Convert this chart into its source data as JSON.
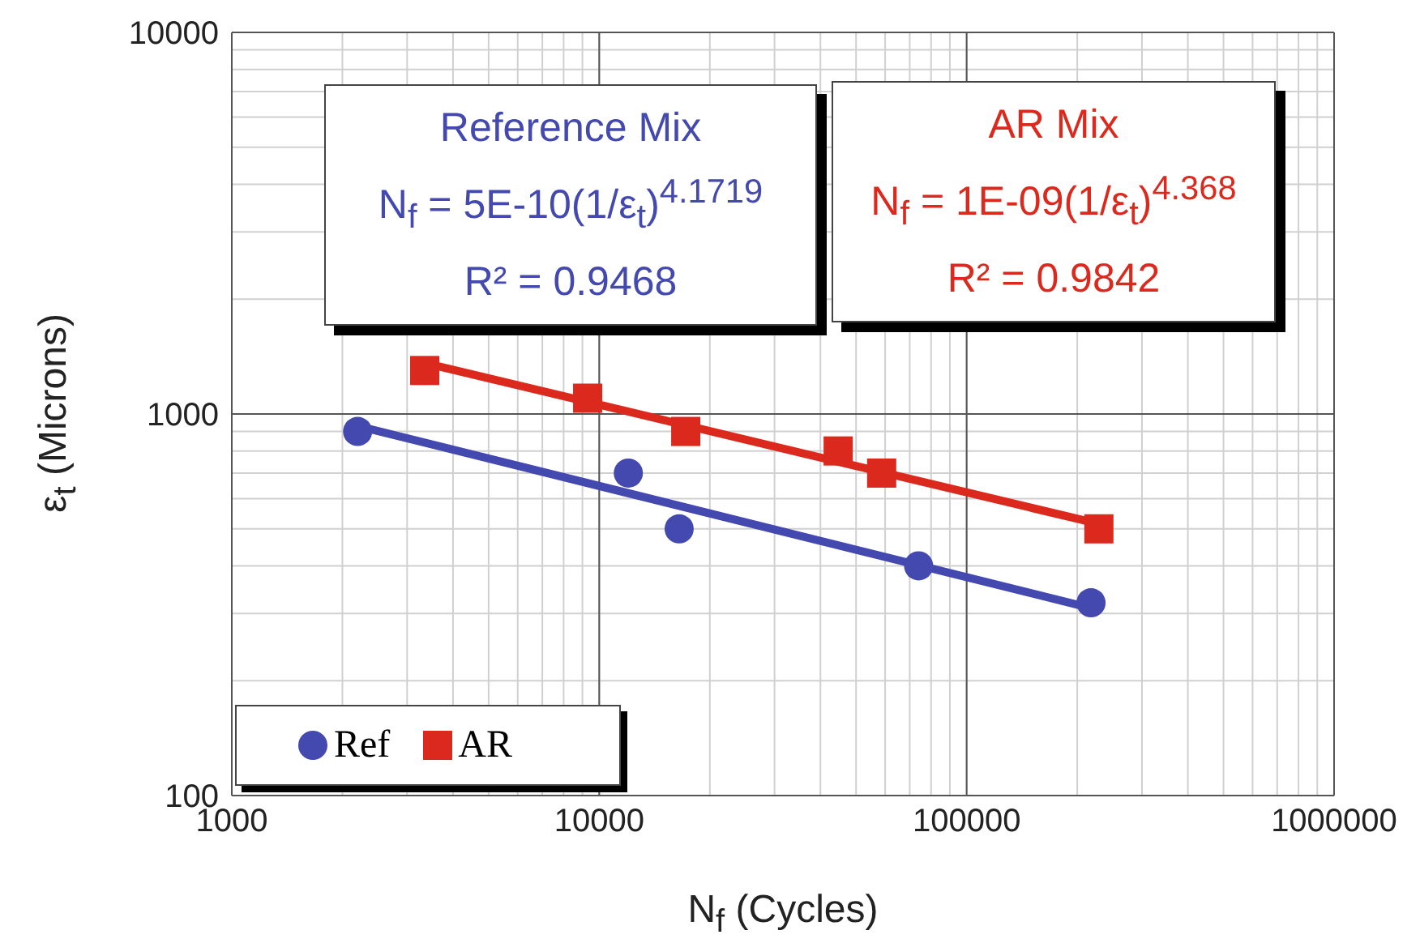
{
  "chart_data": {
    "type": "scatter",
    "xlabel": "N$_{f}$ (Cycles)",
    "ylabel": "ε$_{t}$ (Microns)",
    "log": "xy",
    "grid": true,
    "legend": "bottom left",
    "xlim": [
      1000,
      1000000
    ],
    "ylim": [
      100,
      10000
    ],
    "xticks": [
      1000,
      {
        "value": 2000,
        "label": null
      },
      {
        "value": 3000,
        "label": null
      },
      {
        "value": 4000,
        "label": null
      },
      {
        "value": 5000,
        "label": null
      },
      {
        "value": 6000,
        "label": null
      },
      {
        "value": 7000,
        "label": null
      },
      {
        "value": 8000,
        "label": null
      },
      {
        "value": 9000,
        "label": null
      },
      10000,
      {
        "value": 20000,
        "label": null
      },
      {
        "value": 30000,
        "label": null
      },
      {
        "value": 40000,
        "label": null
      },
      {
        "value": 50000,
        "label": null
      },
      {
        "value": 60000,
        "label": null
      },
      {
        "value": 70000,
        "label": null
      },
      {
        "value": 80000,
        "label": null
      },
      {
        "value": 90000,
        "label": null
      },
      100000,
      {
        "value": 200000,
        "label": null
      },
      {
        "value": 300000,
        "label": null
      },
      {
        "value": 400000,
        "label": null
      },
      {
        "value": 500000,
        "label": null
      },
      {
        "value": 600000,
        "label": null
      },
      {
        "value": 700000,
        "label": null
      },
      {
        "value": 800000,
        "label": null
      },
      {
        "value": 900000,
        "label": null
      },
      1000000
    ],
    "yticks": [
      100,
      {
        "value": 200,
        "label": null
      },
      {
        "value": 300,
        "label": null
      },
      {
        "value": 400,
        "label": null
      },
      {
        "value": 500,
        "label": null
      },
      {
        "value": 600,
        "label": null
      },
      {
        "value": 700,
        "label": null
      },
      {
        "value": 800,
        "label": null
      },
      {
        "value": 900,
        "label": null
      },
      1000,
      {
        "value": 2000,
        "label": null
      },
      {
        "value": 3000,
        "label": null
      },
      {
        "value": 4000,
        "label": null
      },
      {
        "value": 5000,
        "label": null
      },
      {
        "value": 6000,
        "label": null
      },
      {
        "value": 7000,
        "label": null
      },
      {
        "value": 8000,
        "label": null
      },
      {
        "value": 9000,
        "label": null
      },
      10000
    ],
    "series": [
      {
        "name": "Ref",
        "marker": "circle",
        "color": "#4349ae",
        "x": [
          2200,
          12000,
          16500,
          74000,
          218000
        ],
        "values": [
          900,
          700,
          500,
          400,
          320
        ]
      },
      {
        "name": "AR",
        "marker": "square",
        "color": "#dc291e",
        "x": [
          3350,
          9300,
          17200,
          44700,
          58700,
          229000
        ],
        "values": [
          1300,
          1100,
          900,
          800,
          700,
          500
        ]
      },
      {
        "type": "line",
        "marker": "none",
        "color": "#4349ae",
        "x": [
          2200,
          218000
        ],
        "values": [
          930,
          310
        ]
      },
      {
        "type": "line",
        "marker": "none",
        "color": "#dc291e",
        "x": [
          3350,
          229000
        ],
        "values": [
          1360,
          515
        ]
      }
    ],
    "annotations": [
      "Reference Mix\nN$_{f}$ = 5E-10(1/ε$_{t}$)$^{4.1719}$\nR² = 0.9468",
      "AR Mix\nN$_{f}$ = 1E-09(1/ε$_{t}$)$^{4.368}$\nR² = 0.9842"
    ]
  }
}
